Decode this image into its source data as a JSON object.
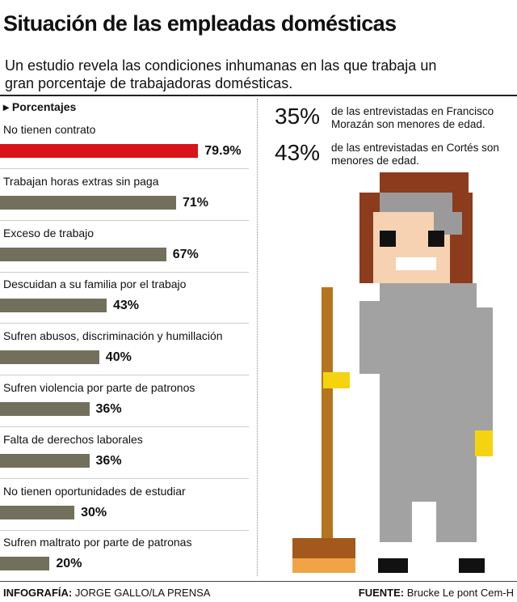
{
  "chart_data": {
    "type": "bar",
    "orientation": "horizontal",
    "title": "Situación de las empleadas domésticas",
    "subtitle": "Un estudio revela las condiciones inhumanas en las que trabaja un gran porcentaje de trabajadoras domésticas.",
    "axis_label": "Porcentajes",
    "categories": [
      "No tienen contrato",
      "Trabajan horas extras sin paga",
      "Exceso de trabajo",
      "Descuidan a su familia por el trabajo",
      "Sufren abusos, discriminación y humillación",
      "Sufren violencia por parte de patronos",
      "Falta de derechos laborales",
      "No tienen oportunidades de estudiar",
      "Sufren maltrato por parte de patronas"
    ],
    "values": [
      79.9,
      71,
      67,
      43,
      40,
      36,
      36,
      30,
      20
    ],
    "value_labels": [
      "79.9%",
      "71%",
      "67%",
      "43%",
      "40%",
      "36%",
      "36%",
      "30%",
      "20%"
    ],
    "colors": [
      "#d7141a",
      "#72705c",
      "#72705c",
      "#72705c",
      "#72705c",
      "#72705c",
      "#72705c",
      "#72705c",
      "#72705c"
    ]
  },
  "annotations": [
    {
      "value": 35,
      "label": "35%",
      "text": "de las entrevistadas en Francisco Morazán  son menores de edad."
    },
    {
      "value": 43,
      "label": "43%",
      "text": "de las entrevistadas en Cortés son menores de edad."
    }
  ],
  "footer": {
    "credit_label": "INFOGRAFÍA:",
    "credit": "JORGE GALLO/LA PRENSA",
    "source_label": "FUENTE:",
    "source": "Brucke Le pont Cem-H"
  }
}
